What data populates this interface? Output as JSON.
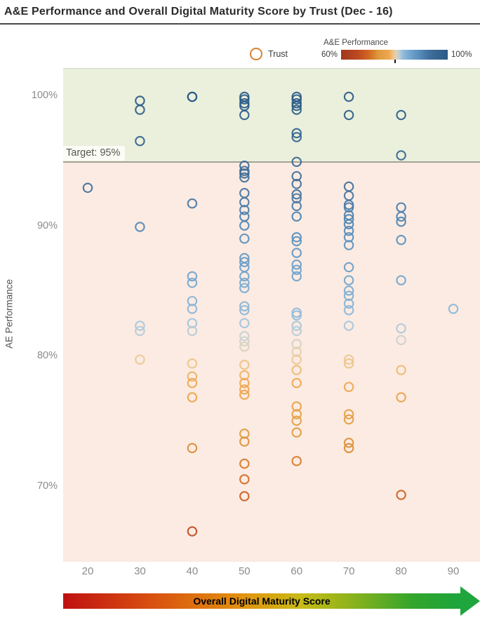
{
  "title": "A&E Performance and Overall Digital Maturity Score by Trust (Dec - 16)",
  "legend": {
    "trust_label": "Trust",
    "trust_ring_color": "#d9822f",
    "gradient_title": "A&E Performance",
    "gradient_min": "60%",
    "gradient_max": "100%",
    "gradient_tick_value": 80
  },
  "target": {
    "label": "Target: 95%",
    "value": 95
  },
  "axes": {
    "y_title": "AE Performance"
  },
  "arrow": {
    "label": "Overall Digital Maturity Score",
    "gradient": [
      [
        "#bf1111",
        0
      ],
      [
        "#d84f10",
        22
      ],
      [
        "#e2920f",
        45
      ],
      [
        "#c8bb16",
        60
      ],
      [
        "#8fb31c",
        72
      ],
      [
        "#33a52c",
        88
      ],
      [
        "#1da53c",
        100
      ]
    ],
    "head_color": "#1fa63c"
  },
  "colors": {
    "band_above_target": "#eaf0dc",
    "band_below_target": "#fbebe2",
    "target_line": "#a3a196",
    "tick_label": "#8b8b8b",
    "title_text": "#2b2b2b"
  },
  "chart_data": {
    "type": "scatter",
    "title": "A&E Performance and Overall Digital Maturity Score by Trust (Dec - 16)",
    "xlabel": "Overall Digital Maturity Score",
    "ylabel": "AE Performance",
    "xlim": [
      15.3,
      95
    ],
    "ylim": [
      64.3,
      102.2
    ],
    "x_ticks": [
      20,
      30,
      40,
      50,
      60,
      70,
      80,
      90
    ],
    "y_ticks": [
      100,
      90,
      80,
      70
    ],
    "grid": false,
    "legend_position": "top-right",
    "target_value": 95,
    "color_scale": {
      "label": "A&E Performance",
      "domain": [
        60,
        100
      ],
      "stops": [
        [
          60,
          "#9e3a1e"
        ],
        [
          66,
          "#bc4720"
        ],
        [
          70,
          "#ce6523"
        ],
        [
          72,
          "#d87d2a"
        ],
        [
          74,
          "#dd9a3f"
        ],
        [
          78,
          "#efa750"
        ],
        [
          79.5,
          "#edc489"
        ],
        [
          80.3,
          "#e4cfa7"
        ],
        [
          81,
          "#d5d2c3"
        ],
        [
          81.6,
          "#c6cfd4"
        ],
        [
          82.4,
          "#a8c6dc"
        ],
        [
          83.5,
          "#8db8da"
        ],
        [
          85,
          "#7cacd3"
        ],
        [
          87,
          "#699dc8"
        ],
        [
          89,
          "#5a90be"
        ],
        [
          91,
          "#4a7fae"
        ],
        [
          93,
          "#41709e"
        ],
        [
          95,
          "#3a6892"
        ],
        [
          100,
          "#2b5a88"
        ]
      ]
    },
    "points": [
      [
        20,
        93
      ],
      [
        30,
        99.7
      ],
      [
        30,
        99
      ],
      [
        30,
        96.6
      ],
      [
        30,
        90
      ],
      [
        30,
        82.4
      ],
      [
        30,
        82
      ],
      [
        30,
        79.8
      ],
      [
        40,
        100
      ],
      [
        40,
        100
      ],
      [
        40,
        91.8
      ],
      [
        40,
        86.2
      ],
      [
        40,
        85.7
      ],
      [
        40,
        84.3
      ],
      [
        40,
        83.7
      ],
      [
        40,
        82.6
      ],
      [
        40,
        82
      ],
      [
        40,
        79.5
      ],
      [
        40,
        78.5
      ],
      [
        40,
        78
      ],
      [
        40,
        76.9
      ],
      [
        40,
        73
      ],
      [
        40,
        66.6
      ],
      [
        50,
        100
      ],
      [
        50,
        99.8
      ],
      [
        50,
        99.5
      ],
      [
        50,
        99.3
      ],
      [
        50,
        98.6
      ],
      [
        50,
        94.7
      ],
      [
        50,
        94.3
      ],
      [
        50,
        94.1
      ],
      [
        50,
        93.8
      ],
      [
        50,
        92.6
      ],
      [
        50,
        91.9
      ],
      [
        50,
        91.3
      ],
      [
        50,
        90.8
      ],
      [
        50,
        90.1
      ],
      [
        50,
        89.1
      ],
      [
        50,
        87.6
      ],
      [
        50,
        87.3
      ],
      [
        50,
        86.9
      ],
      [
        50,
        86.2
      ],
      [
        50,
        85.7
      ],
      [
        50,
        85.3
      ],
      [
        50,
        83.9
      ],
      [
        50,
        83.6
      ],
      [
        50,
        82.6
      ],
      [
        50,
        81.6
      ],
      [
        50,
        81.2
      ],
      [
        50,
        80.8
      ],
      [
        50,
        79.4
      ],
      [
        50,
        78.6
      ],
      [
        50,
        78
      ],
      [
        50,
        77.5
      ],
      [
        50,
        77.1
      ],
      [
        50,
        74.1
      ],
      [
        50,
        73.5
      ],
      [
        50,
        71.8
      ],
      [
        50,
        70.6
      ],
      [
        50,
        69.3
      ],
      [
        60,
        100
      ],
      [
        60,
        99.8
      ],
      [
        60,
        99.5
      ],
      [
        60,
        99.3
      ],
      [
        60,
        99
      ],
      [
        60,
        97.2
      ],
      [
        60,
        96.9
      ],
      [
        60,
        95
      ],
      [
        60,
        93.9
      ],
      [
        60,
        93.3
      ],
      [
        60,
        92.5
      ],
      [
        60,
        92.2
      ],
      [
        60,
        91.6
      ],
      [
        60,
        90.8
      ],
      [
        60,
        89.2
      ],
      [
        60,
        88.9
      ],
      [
        60,
        88
      ],
      [
        60,
        87.1
      ],
      [
        60,
        86.7
      ],
      [
        60,
        86.2
      ],
      [
        60,
        83.4
      ],
      [
        60,
        83.2
      ],
      [
        60,
        82.4
      ],
      [
        60,
        82
      ],
      [
        60,
        81
      ],
      [
        60,
        80.4
      ],
      [
        60,
        79.8
      ],
      [
        60,
        79
      ],
      [
        60,
        78
      ],
      [
        60,
        76.2
      ],
      [
        60,
        75.6
      ],
      [
        60,
        75.1
      ],
      [
        60,
        74.2
      ],
      [
        60,
        72
      ],
      [
        70,
        100
      ],
      [
        70,
        98.6
      ],
      [
        70,
        93.1
      ],
      [
        70,
        92.4
      ],
      [
        70,
        91.7
      ],
      [
        70,
        91.5
      ],
      [
        70,
        90.9
      ],
      [
        70,
        90.6
      ],
      [
        70,
        90.2
      ],
      [
        70,
        89.7
      ],
      [
        70,
        89.2
      ],
      [
        70,
        88.6
      ],
      [
        70,
        86.9
      ],
      [
        70,
        85.9
      ],
      [
        70,
        85.1
      ],
      [
        70,
        84.7
      ],
      [
        70,
        84.1
      ],
      [
        70,
        83.6
      ],
      [
        70,
        82.4
      ],
      [
        70,
        79.8
      ],
      [
        70,
        79.5
      ],
      [
        70,
        77.7
      ],
      [
        70,
        75.6
      ],
      [
        70,
        75.2
      ],
      [
        70,
        73.4
      ],
      [
        70,
        73
      ],
      [
        80,
        98.6
      ],
      [
        80,
        95.5
      ],
      [
        80,
        91.5
      ],
      [
        80,
        90.8
      ],
      [
        80,
        90.4
      ],
      [
        80,
        89
      ],
      [
        80,
        85.9
      ],
      [
        80,
        82.2
      ],
      [
        80,
        81.3
      ],
      [
        80,
        79
      ],
      [
        80,
        76.9
      ],
      [
        80,
        69.4
      ],
      [
        90,
        83.7
      ]
    ]
  }
}
